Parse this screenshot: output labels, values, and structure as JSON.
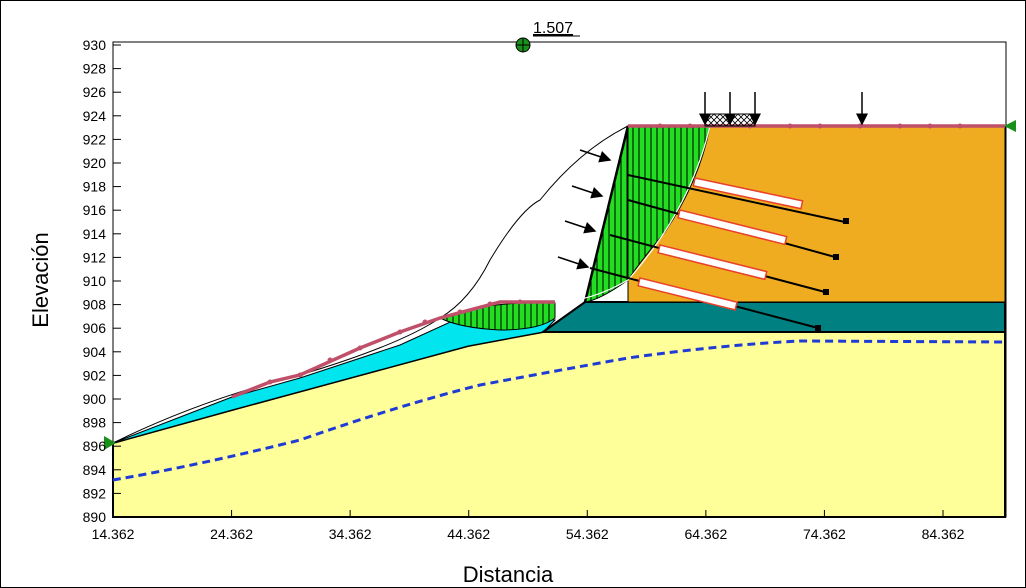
{
  "chart_data": {
    "type": "diagram",
    "xlabel": "Distancia",
    "ylabel": "Elevación",
    "factor_of_safety": "1.507",
    "x_ticks": [
      "14.362",
      "24.362",
      "34.362",
      "44.362",
      "54.362",
      "64.362",
      "74.362",
      "84.362"
    ],
    "y_ticks": [
      "930",
      "928",
      "926",
      "924",
      "922",
      "920",
      "918",
      "916",
      "914",
      "912",
      "910",
      "908",
      "906",
      "904",
      "902",
      "900",
      "898",
      "896",
      "894",
      "892",
      "890"
    ],
    "xlim": [
      14.362,
      92
    ],
    "ylim": [
      890,
      931
    ],
    "colors": {
      "base_soil": "#ffff99",
      "upper_soil": "#f0ac20",
      "teal_layer": "#008080",
      "cyan_fill": "#00e5ee",
      "slip_mass": "#22dd22",
      "water_table": "#1f3bd6",
      "surface": "#c0506a",
      "anchor_bond": "#e8402a"
    }
  }
}
